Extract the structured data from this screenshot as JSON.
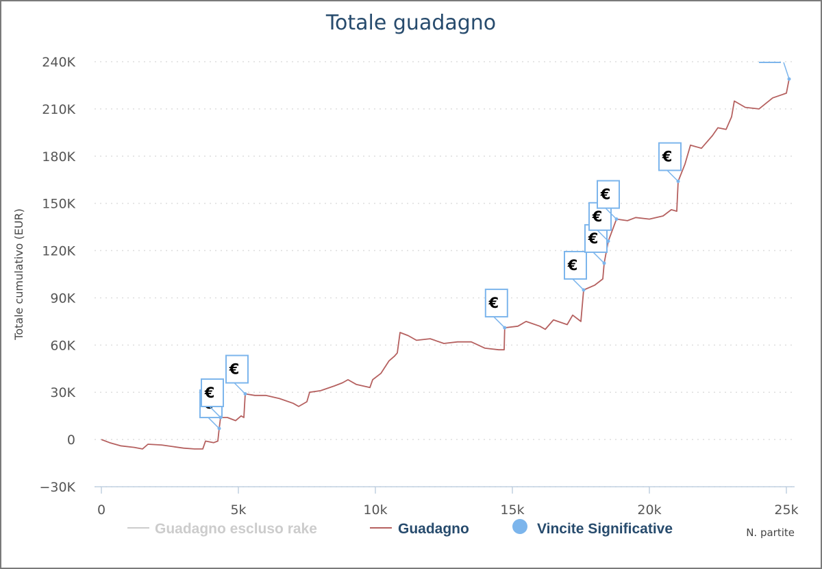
{
  "chart_data": {
    "type": "line",
    "title": "Totale guadagno",
    "ylabel": "Totale cumulativo (EUR)",
    "xlabel": "N. partite",
    "xlim": [
      0,
      25000
    ],
    "ylim": [
      -30000,
      240000
    ],
    "x_ticks": [
      0,
      5000,
      10000,
      15000,
      20000,
      25000
    ],
    "x_tick_labels": [
      "0",
      "5k",
      "10k",
      "15k",
      "20k",
      "25k"
    ],
    "y_ticks": [
      -30000,
      0,
      30000,
      60000,
      90000,
      120000,
      150000,
      180000,
      210000,
      240000
    ],
    "y_tick_labels": [
      "−30K",
      "0",
      "30K",
      "60K",
      "90K",
      "120K",
      "150K",
      "180K",
      "210K",
      "240K"
    ],
    "grid": true,
    "legend_position": "bottom",
    "series": [
      {
        "name": "Guadagno escluso rake",
        "color": "#cccccc",
        "hidden": true,
        "points": []
      },
      {
        "name": "Guadagno",
        "color": "#b5605f",
        "points": [
          [
            0,
            0
          ],
          [
            300,
            -2000
          ],
          [
            700,
            -4000
          ],
          [
            1200,
            -5000
          ],
          [
            1500,
            -6000
          ],
          [
            1700,
            -3000
          ],
          [
            2200,
            -3500
          ],
          [
            2600,
            -4500
          ],
          [
            3000,
            -5500
          ],
          [
            3400,
            -6000
          ],
          [
            3700,
            -6000
          ],
          [
            3800,
            -1000
          ],
          [
            4100,
            -2000
          ],
          [
            4250,
            -1000
          ],
          [
            4300,
            7000
          ],
          [
            4350,
            14000
          ],
          [
            4600,
            14000
          ],
          [
            4900,
            12000
          ],
          [
            5100,
            15000
          ],
          [
            5200,
            14000
          ],
          [
            5250,
            29000
          ],
          [
            5600,
            28000
          ],
          [
            6000,
            28000
          ],
          [
            6500,
            26000
          ],
          [
            7000,
            23000
          ],
          [
            7200,
            21000
          ],
          [
            7500,
            24000
          ],
          [
            7600,
            30000
          ],
          [
            8000,
            31000
          ],
          [
            8500,
            34000
          ],
          [
            8800,
            36000
          ],
          [
            9000,
            38000
          ],
          [
            9300,
            35000
          ],
          [
            9800,
            33000
          ],
          [
            9900,
            38000
          ],
          [
            10200,
            42000
          ],
          [
            10500,
            50000
          ],
          [
            10700,
            53000
          ],
          [
            10800,
            55000
          ],
          [
            10900,
            68000
          ],
          [
            11200,
            66000
          ],
          [
            11500,
            63000
          ],
          [
            12000,
            64000
          ],
          [
            12500,
            61000
          ],
          [
            13000,
            62000
          ],
          [
            13500,
            62000
          ],
          [
            14000,
            58000
          ],
          [
            14500,
            57000
          ],
          [
            14700,
            57000
          ],
          [
            14720,
            71000
          ],
          [
            15200,
            72000
          ],
          [
            15500,
            75000
          ],
          [
            16000,
            72000
          ],
          [
            16200,
            70000
          ],
          [
            16500,
            76000
          ],
          [
            17000,
            73000
          ],
          [
            17200,
            79000
          ],
          [
            17500,
            75000
          ],
          [
            17600,
            95000
          ],
          [
            18000,
            98000
          ],
          [
            18300,
            102000
          ],
          [
            18350,
            112000
          ],
          [
            18500,
            126000
          ],
          [
            18800,
            140000
          ],
          [
            19200,
            139000
          ],
          [
            19500,
            141000
          ],
          [
            20000,
            140000
          ],
          [
            20500,
            142000
          ],
          [
            20800,
            146000
          ],
          [
            21000,
            145000
          ],
          [
            21050,
            164000
          ],
          [
            21300,
            175000
          ],
          [
            21500,
            187000
          ],
          [
            21900,
            185000
          ],
          [
            22000,
            187000
          ],
          [
            22300,
            193000
          ],
          [
            22500,
            198000
          ],
          [
            22800,
            197000
          ],
          [
            23000,
            205000
          ],
          [
            23100,
            215000
          ],
          [
            23500,
            211000
          ],
          [
            24000,
            210000
          ],
          [
            24500,
            217000
          ],
          [
            25000,
            220000
          ],
          [
            25100,
            229000
          ]
        ]
      },
      {
        "name": "Vincite Significative",
        "color": "#7cb5ec",
        "flag_symbol": "€",
        "points": [
          [
            4300,
            7000
          ],
          [
            4350,
            14000
          ],
          [
            5250,
            29000
          ],
          [
            14720,
            71000
          ],
          [
            17600,
            95000
          ],
          [
            18350,
            112000
          ],
          [
            18500,
            126000
          ],
          [
            18800,
            140000
          ],
          [
            21050,
            164000
          ],
          [
            25100,
            229000
          ]
        ]
      }
    ]
  }
}
